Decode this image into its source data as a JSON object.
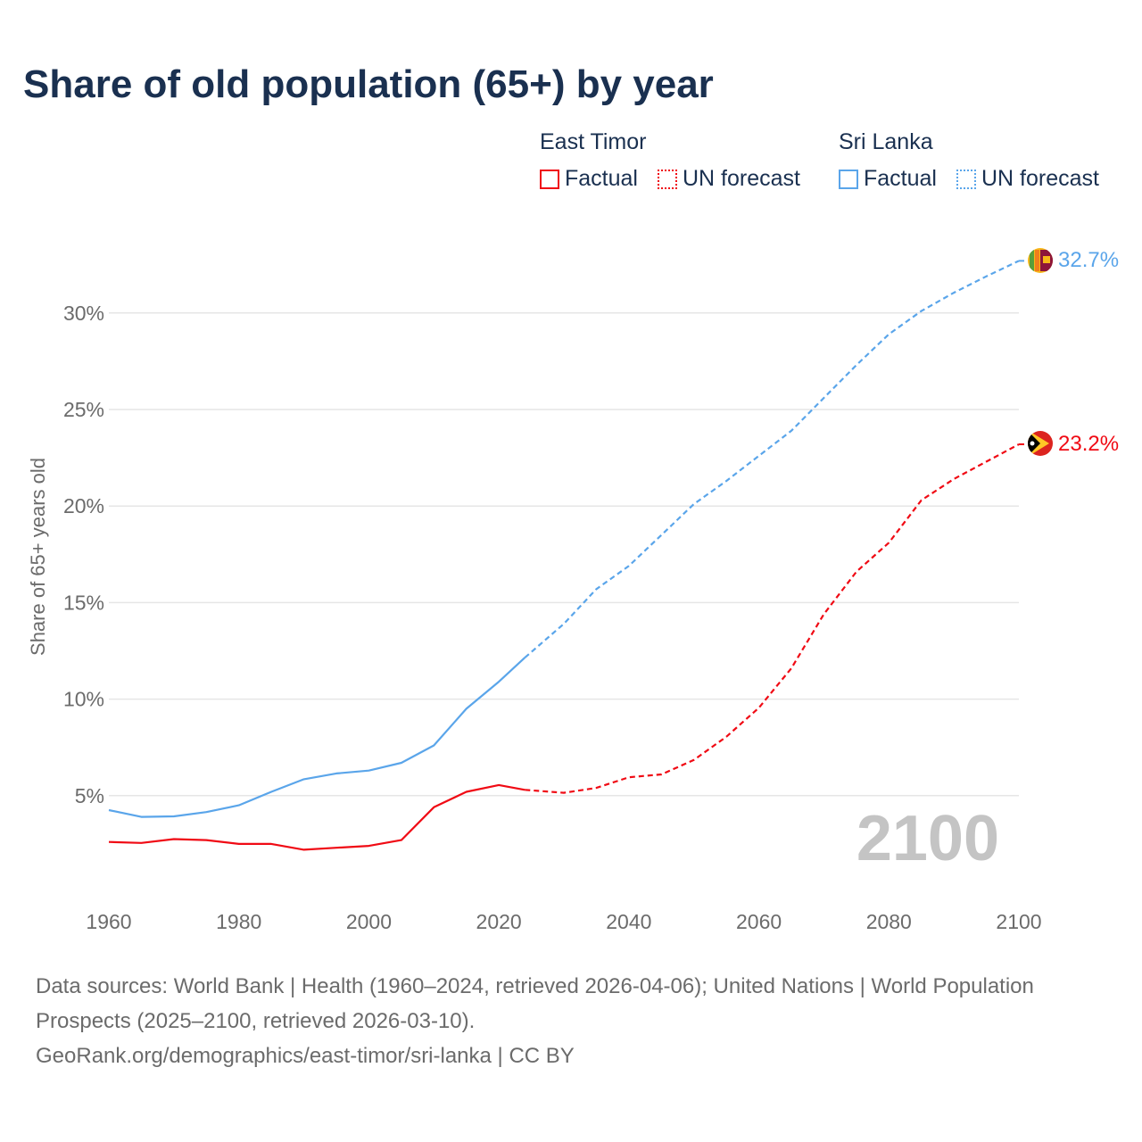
{
  "chart_data": {
    "type": "line",
    "title": "Share of old population (65+) by year",
    "xlabel": "",
    "ylabel": "Share of 65+ years old",
    "xlim": [
      1960,
      2100
    ],
    "ylim": [
      0,
      33
    ],
    "x_ticks": [
      "1960",
      "1980",
      "2000",
      "2020",
      "2040",
      "2060",
      "2080",
      "2100"
    ],
    "y_ticks": [
      {
        "v": 5,
        "label": "5%"
      },
      {
        "v": 10,
        "label": "10%"
      },
      {
        "v": 15,
        "label": "15%"
      },
      {
        "v": 20,
        "label": "20%"
      },
      {
        "v": 25,
        "label": "25%"
      },
      {
        "v": 30,
        "label": "30%"
      }
    ],
    "grid": true,
    "year_watermark": "2100",
    "forecast_start": 2024,
    "x": [
      1960,
      1965,
      1970,
      1975,
      1980,
      1985,
      1990,
      1995,
      2000,
      2005,
      2010,
      2015,
      2020,
      2024,
      2030,
      2035,
      2040,
      2045,
      2050,
      2055,
      2060,
      2065,
      2070,
      2075,
      2080,
      2085,
      2090,
      2095,
      2100
    ],
    "series": [
      {
        "name": "Sri Lanka",
        "color": "#5aa5ea",
        "end_label": "32.7%",
        "values": [
          4.25,
          3.9,
          3.93,
          4.15,
          4.5,
          5.2,
          5.85,
          6.15,
          6.3,
          6.7,
          7.6,
          9.5,
          10.9,
          12.15,
          13.9,
          15.7,
          16.9,
          18.5,
          20.1,
          21.3,
          22.6,
          23.9,
          25.6,
          27.3,
          28.9,
          30.1,
          31.05,
          31.9,
          32.7
        ]
      },
      {
        "name": "East Timor",
        "color": "#f00a14",
        "end_label": "23.2%",
        "values": [
          2.6,
          2.55,
          2.75,
          2.7,
          2.5,
          2.5,
          2.2,
          2.3,
          2.4,
          2.7,
          4.4,
          5.2,
          5.55,
          5.3,
          5.15,
          5.4,
          5.95,
          6.1,
          6.85,
          8.05,
          9.55,
          11.6,
          14.4,
          16.6,
          18.1,
          20.3,
          21.4,
          22.3,
          23.2
        ]
      }
    ]
  },
  "legend": {
    "east_timor": {
      "title": "East Timor",
      "factual": "Factual",
      "forecast": "UN forecast",
      "color": "#f00a14"
    },
    "sri_lanka": {
      "title": "Sri Lanka",
      "factual": "Factual",
      "forecast": "UN forecast",
      "color": "#5aa5ea"
    }
  },
  "footer": {
    "line1": "Data sources: World Bank | Health (1960–2024, retrieved 2026-04-06); United Nations | World Population Prospects (2025–2100, retrieved 2026-03-10).",
    "line2": "GeoRank.org/demographics/east-timor/sri-lanka | CC BY"
  }
}
